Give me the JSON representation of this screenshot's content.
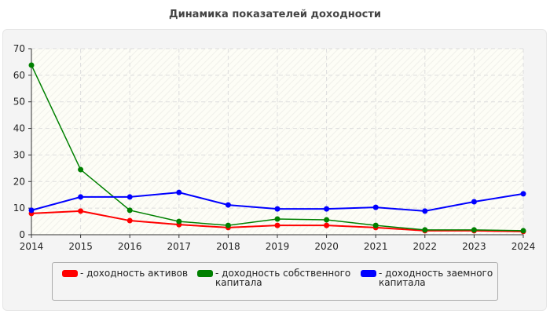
{
  "chart_data": {
    "type": "line",
    "title": "Динамика показателей доходности",
    "x": [
      2014,
      2015,
      2016,
      2017,
      2018,
      2019,
      2020,
      2021,
      2022,
      2023,
      2024
    ],
    "ylim": [
      0,
      70
    ],
    "yticks": [
      0,
      10,
      20,
      30,
      40,
      50,
      60,
      70
    ],
    "grid": true,
    "legend_position": "bottom",
    "series": [
      {
        "name": "- доходность активов",
        "color": "#ff0000",
        "values": [
          8.0,
          8.9,
          5.3,
          3.8,
          2.7,
          3.5,
          3.5,
          2.7,
          1.5,
          1.5,
          1.2
        ]
      },
      {
        "name": "- доходность собственного капитала",
        "color": "#008000",
        "values": [
          63.8,
          24.5,
          9.2,
          5.0,
          3.5,
          5.9,
          5.6,
          3.5,
          1.8,
          1.8,
          1.5
        ]
      },
      {
        "name": "- доходность заемного капитала",
        "color": "#0000ff",
        "values": [
          9.2,
          14.2,
          14.2,
          15.9,
          11.2,
          9.7,
          9.7,
          10.3,
          8.9,
          12.4,
          15.4
        ]
      }
    ]
  }
}
